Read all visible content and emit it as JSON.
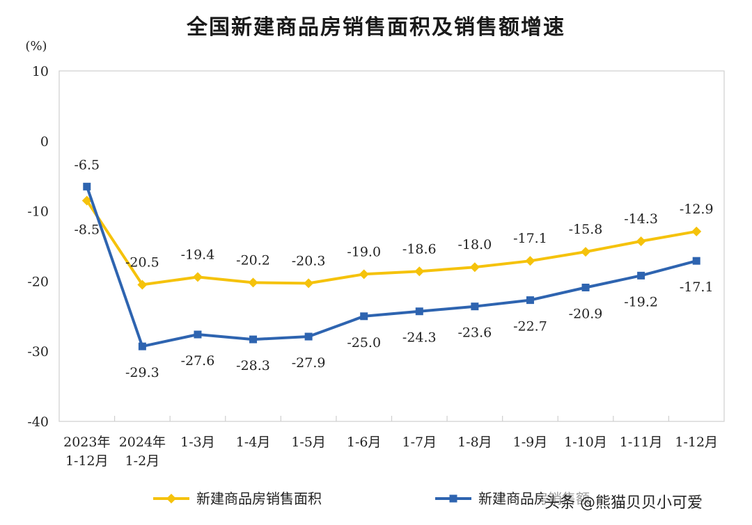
{
  "watermark": "头条 @熊猫贝贝小可爱",
  "chart_data": {
    "type": "line",
    "title": "全国新建商品房销售面积及销售额增速",
    "ylabel": "(%)",
    "ylim": [
      -40,
      10
    ],
    "yticks": [
      10,
      0,
      -10,
      -20,
      -30,
      -40
    ],
    "grid": false,
    "legend_position": "bottom",
    "categories": [
      [
        "2023年",
        "1-12月"
      ],
      [
        "2024年",
        "1-2月"
      ],
      [
        "1-3月"
      ],
      [
        "1-4月"
      ],
      [
        "1-5月"
      ],
      [
        "1-6月"
      ],
      [
        "1-7月"
      ],
      [
        "1-8月"
      ],
      [
        "1-9月"
      ],
      [
        "1-10月"
      ],
      [
        "1-11月"
      ],
      [
        "1-12月"
      ]
    ],
    "series": [
      {
        "name": "新建商品房销售面积",
        "color": "#F5C20B",
        "marker": "diamond",
        "values": [
          -8.5,
          -20.5,
          -19.4,
          -20.2,
          -20.3,
          -19.0,
          -18.6,
          -18.0,
          -17.1,
          -15.8,
          -14.3,
          -12.9
        ],
        "labels": [
          "-8.5",
          "-20.5",
          "-19.4",
          "-20.2",
          "-20.3",
          "-19.0",
          "-18.6",
          "-18.0",
          "-17.1",
          "-15.8",
          "-14.3",
          "-12.9"
        ]
      },
      {
        "name": "新建商品房销售额",
        "color": "#2E64B0",
        "marker": "square",
        "values": [
          -6.5,
          -29.3,
          -27.6,
          -28.3,
          -27.9,
          -25.0,
          -24.3,
          -23.6,
          -22.7,
          -20.9,
          -19.2,
          -17.1
        ],
        "labels": [
          "-6.5",
          "-29.3",
          "-27.6",
          "-28.3",
          "-27.9",
          "-25.0",
          "-24.3",
          "-23.6",
          "-22.7",
          "-20.9",
          "-19.2",
          "-17.1"
        ]
      }
    ]
  }
}
